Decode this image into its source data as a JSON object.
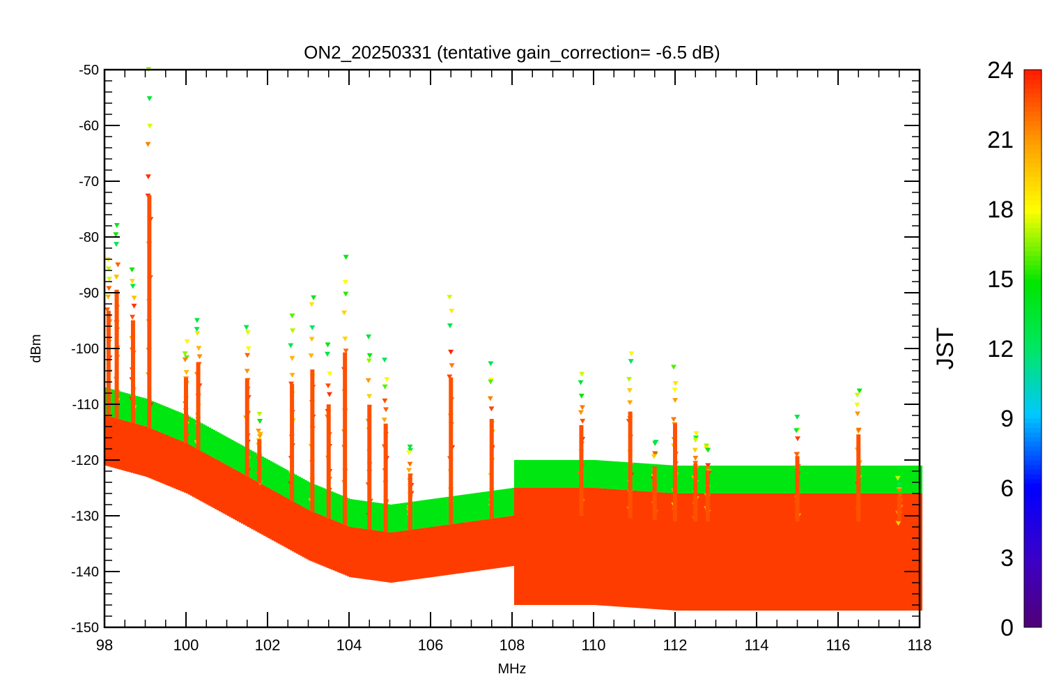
{
  "chart_data": {
    "type": "scatter",
    "title": "ON2_20250331 (tentative gain_correction= -6.5 dB)",
    "xlabel": "MHz",
    "ylabel": "dBm",
    "xlim": [
      98,
      118
    ],
    "ylim": [
      -150,
      -50
    ],
    "x_ticks": [
      "98",
      "100",
      "102",
      "104",
      "106",
      "108",
      "110",
      "112",
      "114",
      "116",
      "118"
    ],
    "y_ticks": [
      "-50",
      "-60",
      "-70",
      "-80",
      "-90",
      "-100",
      "-110",
      "-120",
      "-130",
      "-140",
      "-150"
    ],
    "colorbar": {
      "label": "JST",
      "range": [
        0,
        24
      ],
      "ticks": [
        "0",
        "3",
        "6",
        "9",
        "12",
        "15",
        "18",
        "21",
        "24"
      ],
      "colormap": "rainbow (purple-blue-cyan-green-yellow-red)"
    },
    "noise_floor": [
      {
        "x": 98.0,
        "y": -116
      },
      {
        "x": 99.0,
        "y": -118
      },
      {
        "x": 100.0,
        "y": -121
      },
      {
        "x": 101.0,
        "y": -125
      },
      {
        "x": 102.0,
        "y": -129
      },
      {
        "x": 103.0,
        "y": -133
      },
      {
        "x": 104.0,
        "y": -136
      },
      {
        "x": 105.0,
        "y": -137
      },
      {
        "x": 106.0,
        "y": -136
      },
      {
        "x": 107.0,
        "y": -135
      },
      {
        "x": 108.0,
        "y": -134
      },
      {
        "x": 110.0,
        "y": -134
      },
      {
        "x": 112.0,
        "y": -135
      },
      {
        "x": 114.0,
        "y": -135
      },
      {
        "x": 116.0,
        "y": -135
      },
      {
        "x": 118.0,
        "y": -135
      }
    ],
    "peaks": [
      {
        "x": 98.1,
        "y": -83
      },
      {
        "x": 98.3,
        "y": -77
      },
      {
        "x": 98.7,
        "y": -85
      },
      {
        "x": 99.1,
        "y": -50
      },
      {
        "x": 100.0,
        "y": -99
      },
      {
        "x": 100.3,
        "y": -94
      },
      {
        "x": 101.5,
        "y": -96
      },
      {
        "x": 101.8,
        "y": -112
      },
      {
        "x": 102.6,
        "y": -95
      },
      {
        "x": 103.1,
        "y": -90
      },
      {
        "x": 103.5,
        "y": -99
      },
      {
        "x": 103.9,
        "y": -84
      },
      {
        "x": 104.5,
        "y": -98
      },
      {
        "x": 104.9,
        "y": -103
      },
      {
        "x": 105.5,
        "y": -117
      },
      {
        "x": 106.5,
        "y": -91
      },
      {
        "x": 107.5,
        "y": -103
      },
      {
        "x": 109.7,
        "y": -105
      },
      {
        "x": 110.9,
        "y": -101
      },
      {
        "x": 111.5,
        "y": -116
      },
      {
        "x": 112.0,
        "y": -104
      },
      {
        "x": 112.5,
        "y": -115
      },
      {
        "x": 112.8,
        "y": -117
      },
      {
        "x": 115.0,
        "y": -113
      },
      {
        "x": 116.5,
        "y": -107
      },
      {
        "x": 117.5,
        "y": -124
      }
    ]
  }
}
